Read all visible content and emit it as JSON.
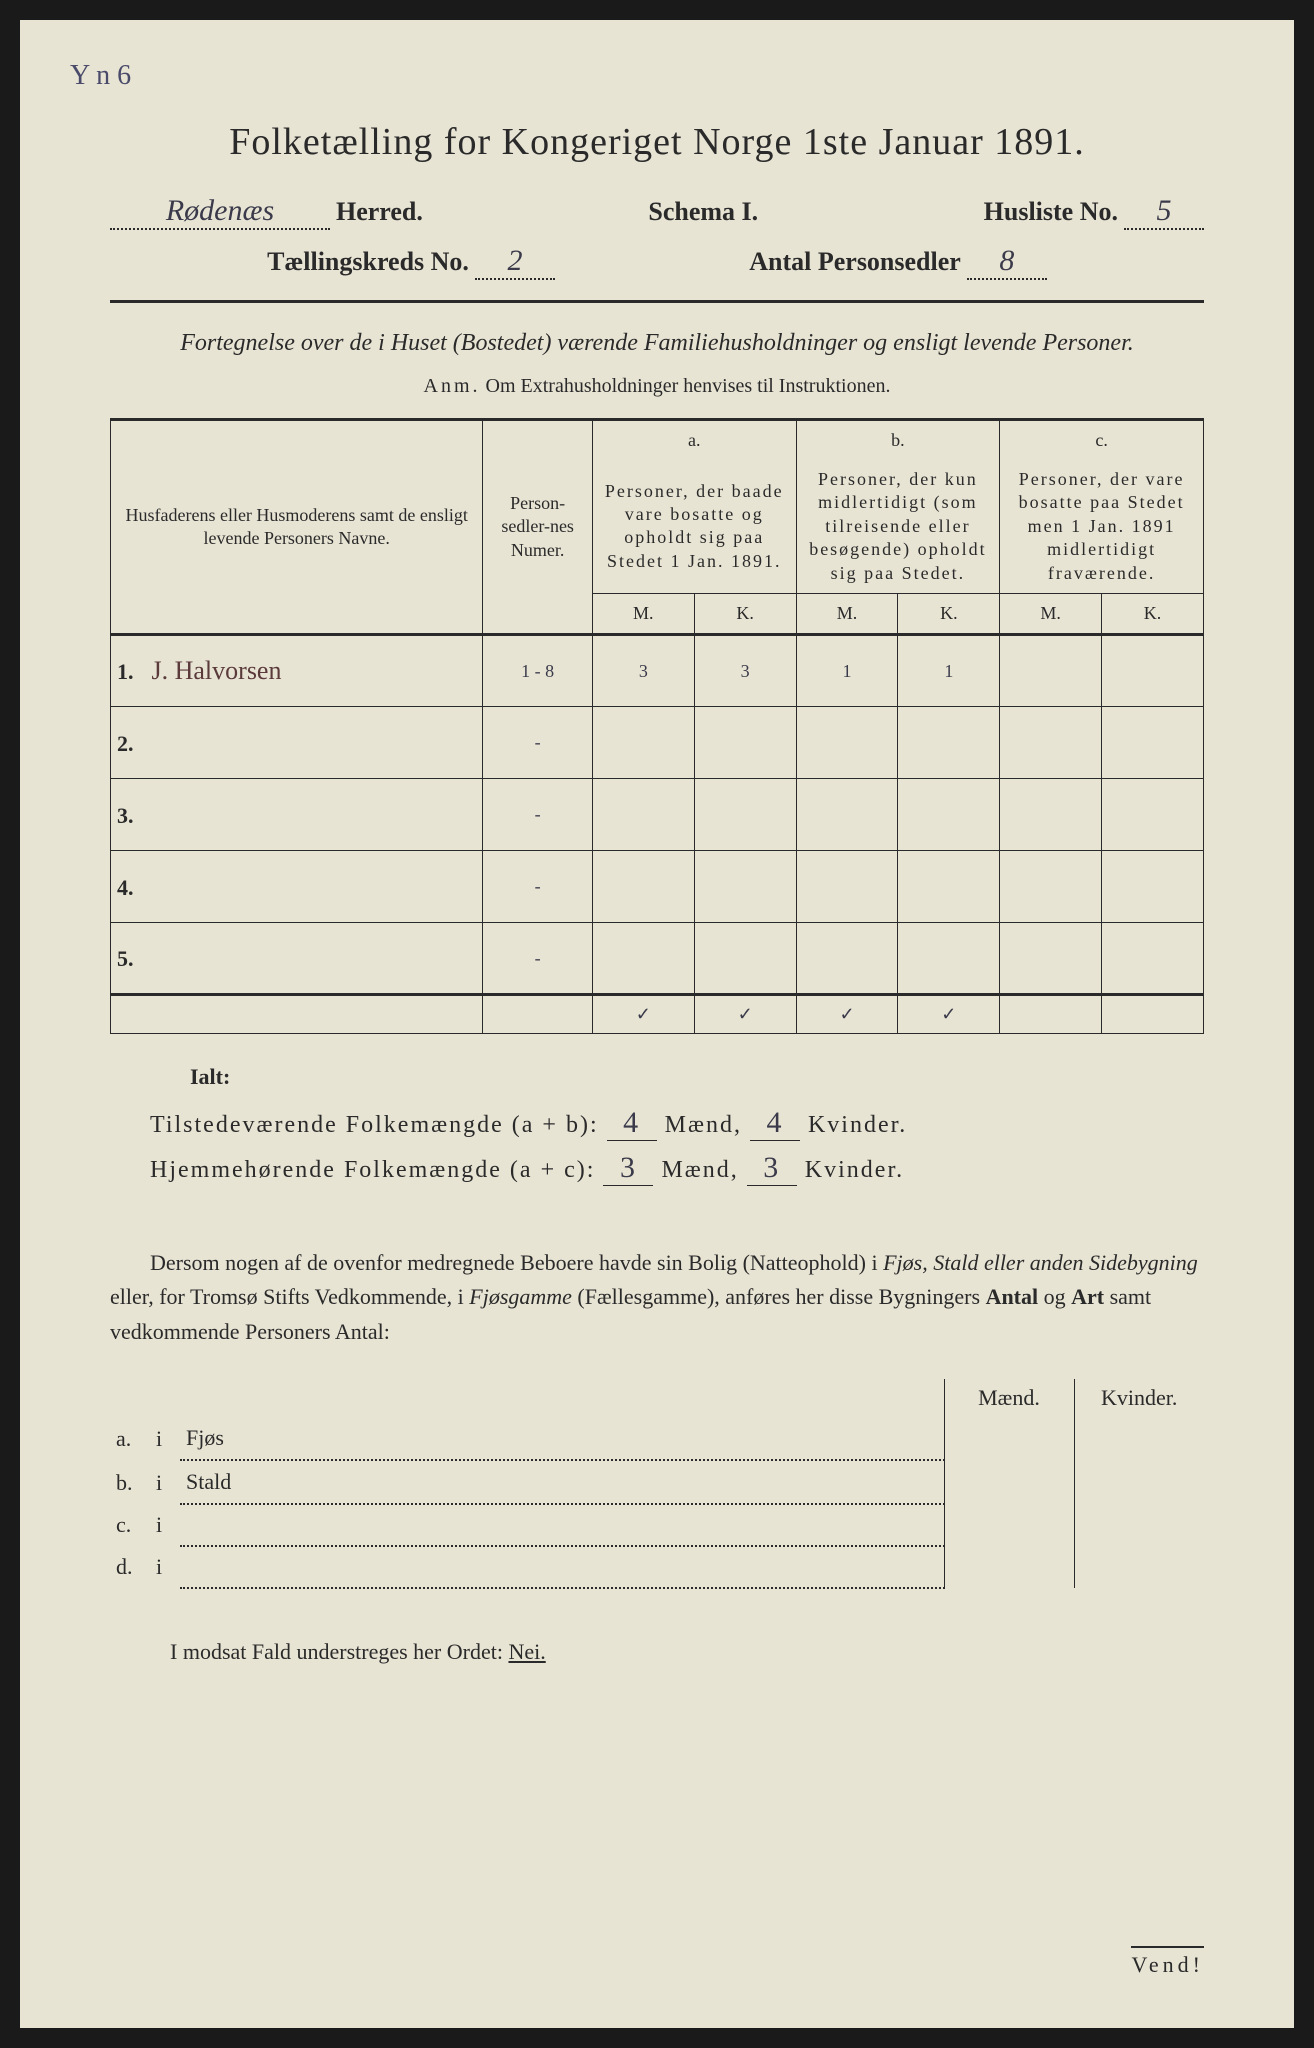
{
  "margin_note": "Y n 6",
  "title": "Folketælling for Kongeriget Norge 1ste Januar 1891.",
  "header": {
    "herred_value": "Rødenæs",
    "herred_label": "Herred.",
    "schema_label": "Schema I.",
    "husliste_label": "Husliste No.",
    "husliste_value": "5",
    "kreds_label": "Tællingskreds No.",
    "kreds_value": "2",
    "sedler_label": "Antal Personsedler",
    "sedler_value": "8"
  },
  "subtitle": "Fortegnelse over de i Huset (Bostedet) værende Familiehusholdninger og ensligt levende Personer.",
  "anm_label": "Anm.",
  "anm_text": "Om Extrahusholdninger henvises til Instruktionen.",
  "table": {
    "col_name": "Husfaderens eller Husmoderens samt de ensligt levende Personers Navne.",
    "col_num": "Person-sedler-nes Numer.",
    "group_a_letter": "a.",
    "group_a": "Personer, der baade vare bosatte og opholdt sig paa Stedet 1 Jan. 1891.",
    "group_b_letter": "b.",
    "group_b": "Personer, der kun midlertidigt (som tilreisende eller besøgende) opholdt sig paa Stedet.",
    "group_c_letter": "c.",
    "group_c": "Personer, der vare bosatte paa Stedet men 1 Jan. 1891 midlertidigt fraværende.",
    "M": "M.",
    "K": "K.",
    "rows": [
      {
        "n": "1.",
        "name": "J. Halvorsen",
        "num": "1 - 8",
        "aM": "3",
        "aK": "3",
        "bM": "1",
        "bK": "1",
        "cM": "",
        "cK": ""
      },
      {
        "n": "2.",
        "name": "",
        "num": "-",
        "aM": "",
        "aK": "",
        "bM": "",
        "bK": "",
        "cM": "",
        "cK": ""
      },
      {
        "n": "3.",
        "name": "",
        "num": "-",
        "aM": "",
        "aK": "",
        "bM": "",
        "bK": "",
        "cM": "",
        "cK": ""
      },
      {
        "n": "4.",
        "name": "",
        "num": "-",
        "aM": "",
        "aK": "",
        "bM": "",
        "bK": "",
        "cM": "",
        "cK": ""
      },
      {
        "n": "5.",
        "name": "",
        "num": "-",
        "aM": "",
        "aK": "",
        "bM": "",
        "bK": "",
        "cM": "",
        "cK": ""
      }
    ],
    "checks": [
      "✓",
      "✓",
      "✓",
      "✓"
    ]
  },
  "ialt": "Ialt:",
  "summary": {
    "line1_label": "Tilstedeværende Folkemængde (a + b):",
    "line1_m": "4",
    "line1_k": "4",
    "line2_label": "Hjemmehørende Folkemængde (a + c):",
    "line2_m": "3",
    "line2_k": "3",
    "maend": "Mænd,",
    "kvinder": "Kvinder."
  },
  "paragraph": {
    "p1": "Dersom nogen af de ovenfor medregnede Beboere havde sin Bolig (Natteophold) i ",
    "p2": "Fjøs, Stald eller anden Sidebygning",
    "p3": " eller, for Tromsø Stifts Vedkommende, i ",
    "p4": "Fjøsgamme",
    "p5": " (Fællesgamme), anføres her disse Bygningers ",
    "p6": "Antal",
    "p7": " og ",
    "p8": "Art",
    "p9": " samt vedkommende Personers Antal:"
  },
  "side": {
    "maend": "Mænd.",
    "kvinder": "Kvinder.",
    "rows": [
      {
        "l": "a.",
        "i": "i",
        "t": "Fjøs"
      },
      {
        "l": "b.",
        "i": "i",
        "t": "Stald"
      },
      {
        "l": "c.",
        "i": "i",
        "t": ""
      },
      {
        "l": "d.",
        "i": "i",
        "t": ""
      }
    ]
  },
  "nei_line": "I modsat Fald understreges her Ordet: ",
  "nei": "Nei.",
  "vend": "Vend!"
}
